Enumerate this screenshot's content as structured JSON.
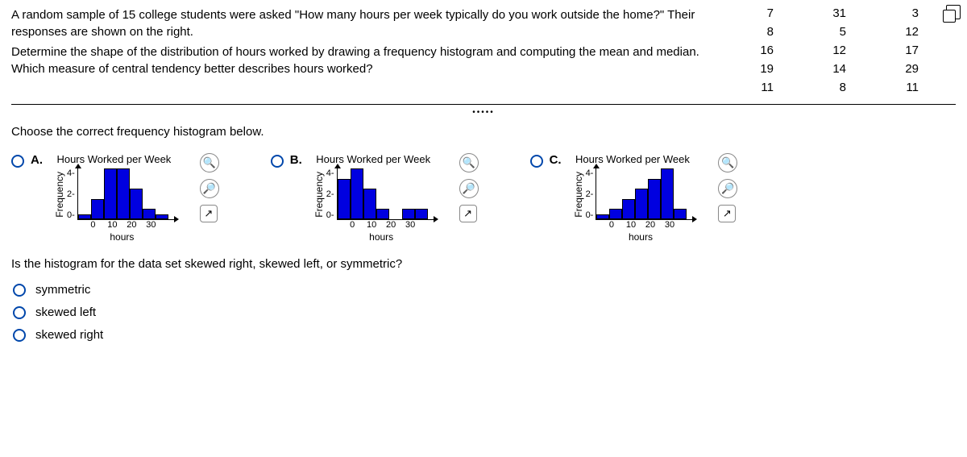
{
  "question": {
    "line1": "A random sample of 15 college students were asked \"How many hours per week typically do you work outside the home?\" Their responses are shown on the right.",
    "line2": "Determine the shape of the distribution of hours worked by drawing a frequency histogram and computing the mean and median. Which measure of central tendency better describes hours worked?"
  },
  "data_values": [
    7,
    31,
    3,
    8,
    5,
    12,
    16,
    12,
    17,
    19,
    14,
    29,
    11,
    8,
    11
  ],
  "sub_question_1": "Choose the correct frequency histogram below.",
  "chart_common": {
    "title": "Hours Worked per Week",
    "y_label": "Frequency",
    "x_label": "hours",
    "y_ticks": [
      "4",
      "2",
      "0"
    ],
    "x_ticks": [
      "0",
      "10",
      "20",
      "30"
    ],
    "y_max": 5,
    "bar_color": "#0000e0"
  },
  "options": [
    {
      "letter": "A.",
      "bars": [
        0.5,
        2,
        5,
        5,
        3,
        1,
        0.5
      ]
    },
    {
      "letter": "B.",
      "bars": [
        4,
        5,
        3,
        1,
        0,
        1,
        1
      ]
    },
    {
      "letter": "C.",
      "bars": [
        0.5,
        1,
        2,
        3,
        4,
        5,
        1
      ]
    }
  ],
  "sub_question_2": "Is the histogram for the data set skewed right, skewed left, or symmetric?",
  "shape_options": [
    "symmetric",
    "skewed left",
    "skewed right"
  ],
  "icons": {
    "zoom_in": "⊕",
    "zoom_out": "⊖",
    "popout": "↗"
  }
}
